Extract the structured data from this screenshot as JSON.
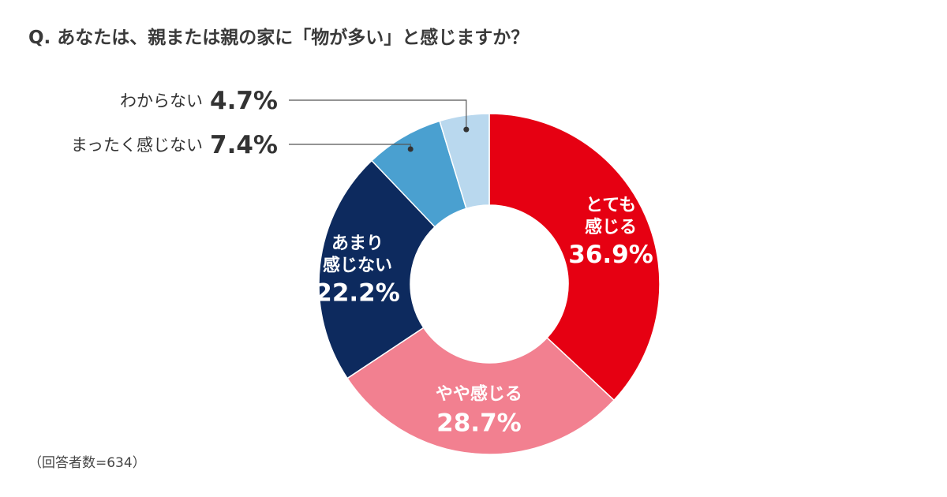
{
  "title": "Q. あなたは、親または親の家に「物が多い」と感じますか？",
  "note": "（回答者数=634）",
  "chart_data": {
    "type": "pie",
    "donut": true,
    "categories": [
      "とても感じる",
      "やや感じる",
      "あまり感じない",
      "まったく感じない",
      "わからない"
    ],
    "values": [
      36.9,
      28.7,
      22.2,
      7.4,
      4.7
    ],
    "value_labels": [
      "36.9%",
      "28.7%",
      "22.2%",
      "7.4%",
      "4.7%"
    ],
    "label_lines": [
      [
        "とても",
        "感じる"
      ],
      [
        "やや感じる"
      ],
      [
        "あまり",
        "感じない"
      ],
      [
        "まったく感じない"
      ],
      [
        "わからない"
      ]
    ],
    "colors": [
      "#e60012",
      "#f28090",
      "#0d2a5e",
      "#4aa0d0",
      "#b9d8ee"
    ]
  }
}
